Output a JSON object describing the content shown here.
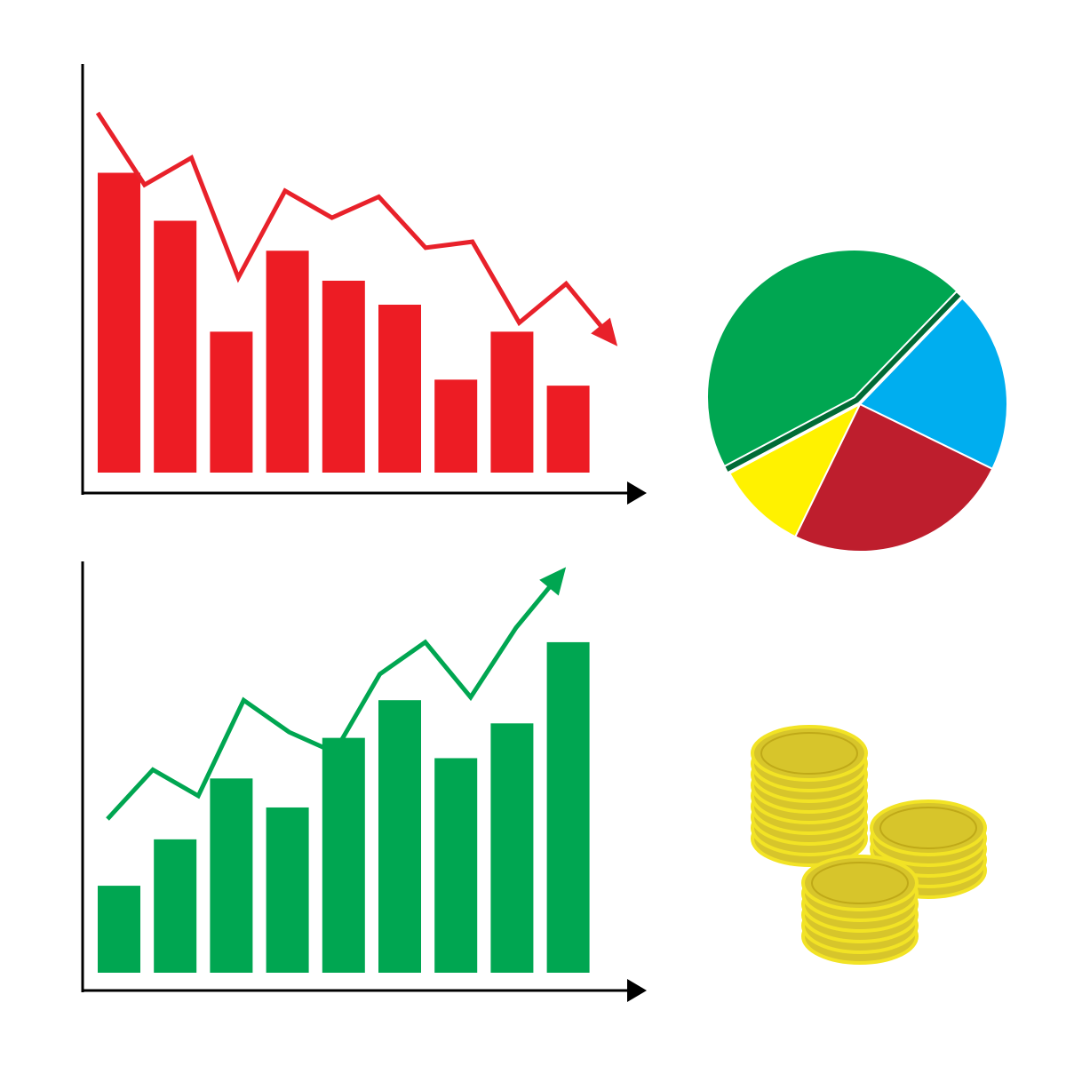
{
  "colors": {
    "red_bar": "#ed1c24",
    "red_line": "#e8212a",
    "green_bar": "#00a651",
    "green_line": "#00a651",
    "axis": "#000000",
    "pie_green": "#00a651",
    "pie_blue": "#00aeef",
    "pie_red": "#be1e2d",
    "pie_yellow": "#fff200",
    "coin_fill": "#d7c52b",
    "coin_rim": "#f2e325"
  },
  "chart_data": [
    {
      "type": "bar",
      "trend": "down",
      "values": [
        100,
        84,
        47,
        74,
        64,
        56,
        31,
        47,
        29
      ],
      "trend_line": [
        120,
        96,
        105,
        65,
        94,
        85,
        92,
        75,
        77,
        50,
        63,
        44
      ],
      "ylim": [
        0,
        128
      ],
      "grid": false
    },
    {
      "type": "bar",
      "trend": "up",
      "values": [
        30,
        46,
        67,
        57,
        81,
        94,
        74,
        86,
        114
      ],
      "trend_line": [
        53,
        70,
        61,
        94,
        83,
        76,
        103,
        114,
        95,
        119,
        138
      ],
      "ylim": [
        0,
        144
      ],
      "grid": false
    },
    {
      "type": "pie",
      "values": [
        45,
        20,
        25,
        10
      ],
      "colors": [
        "#00a651",
        "#00aeef",
        "#be1e2d",
        "#fff200"
      ],
      "exploded": [
        0
      ]
    }
  ],
  "coins": {
    "stacks": [
      {
        "count": 9
      },
      {
        "count": 5
      },
      {
        "count": 6
      }
    ]
  }
}
